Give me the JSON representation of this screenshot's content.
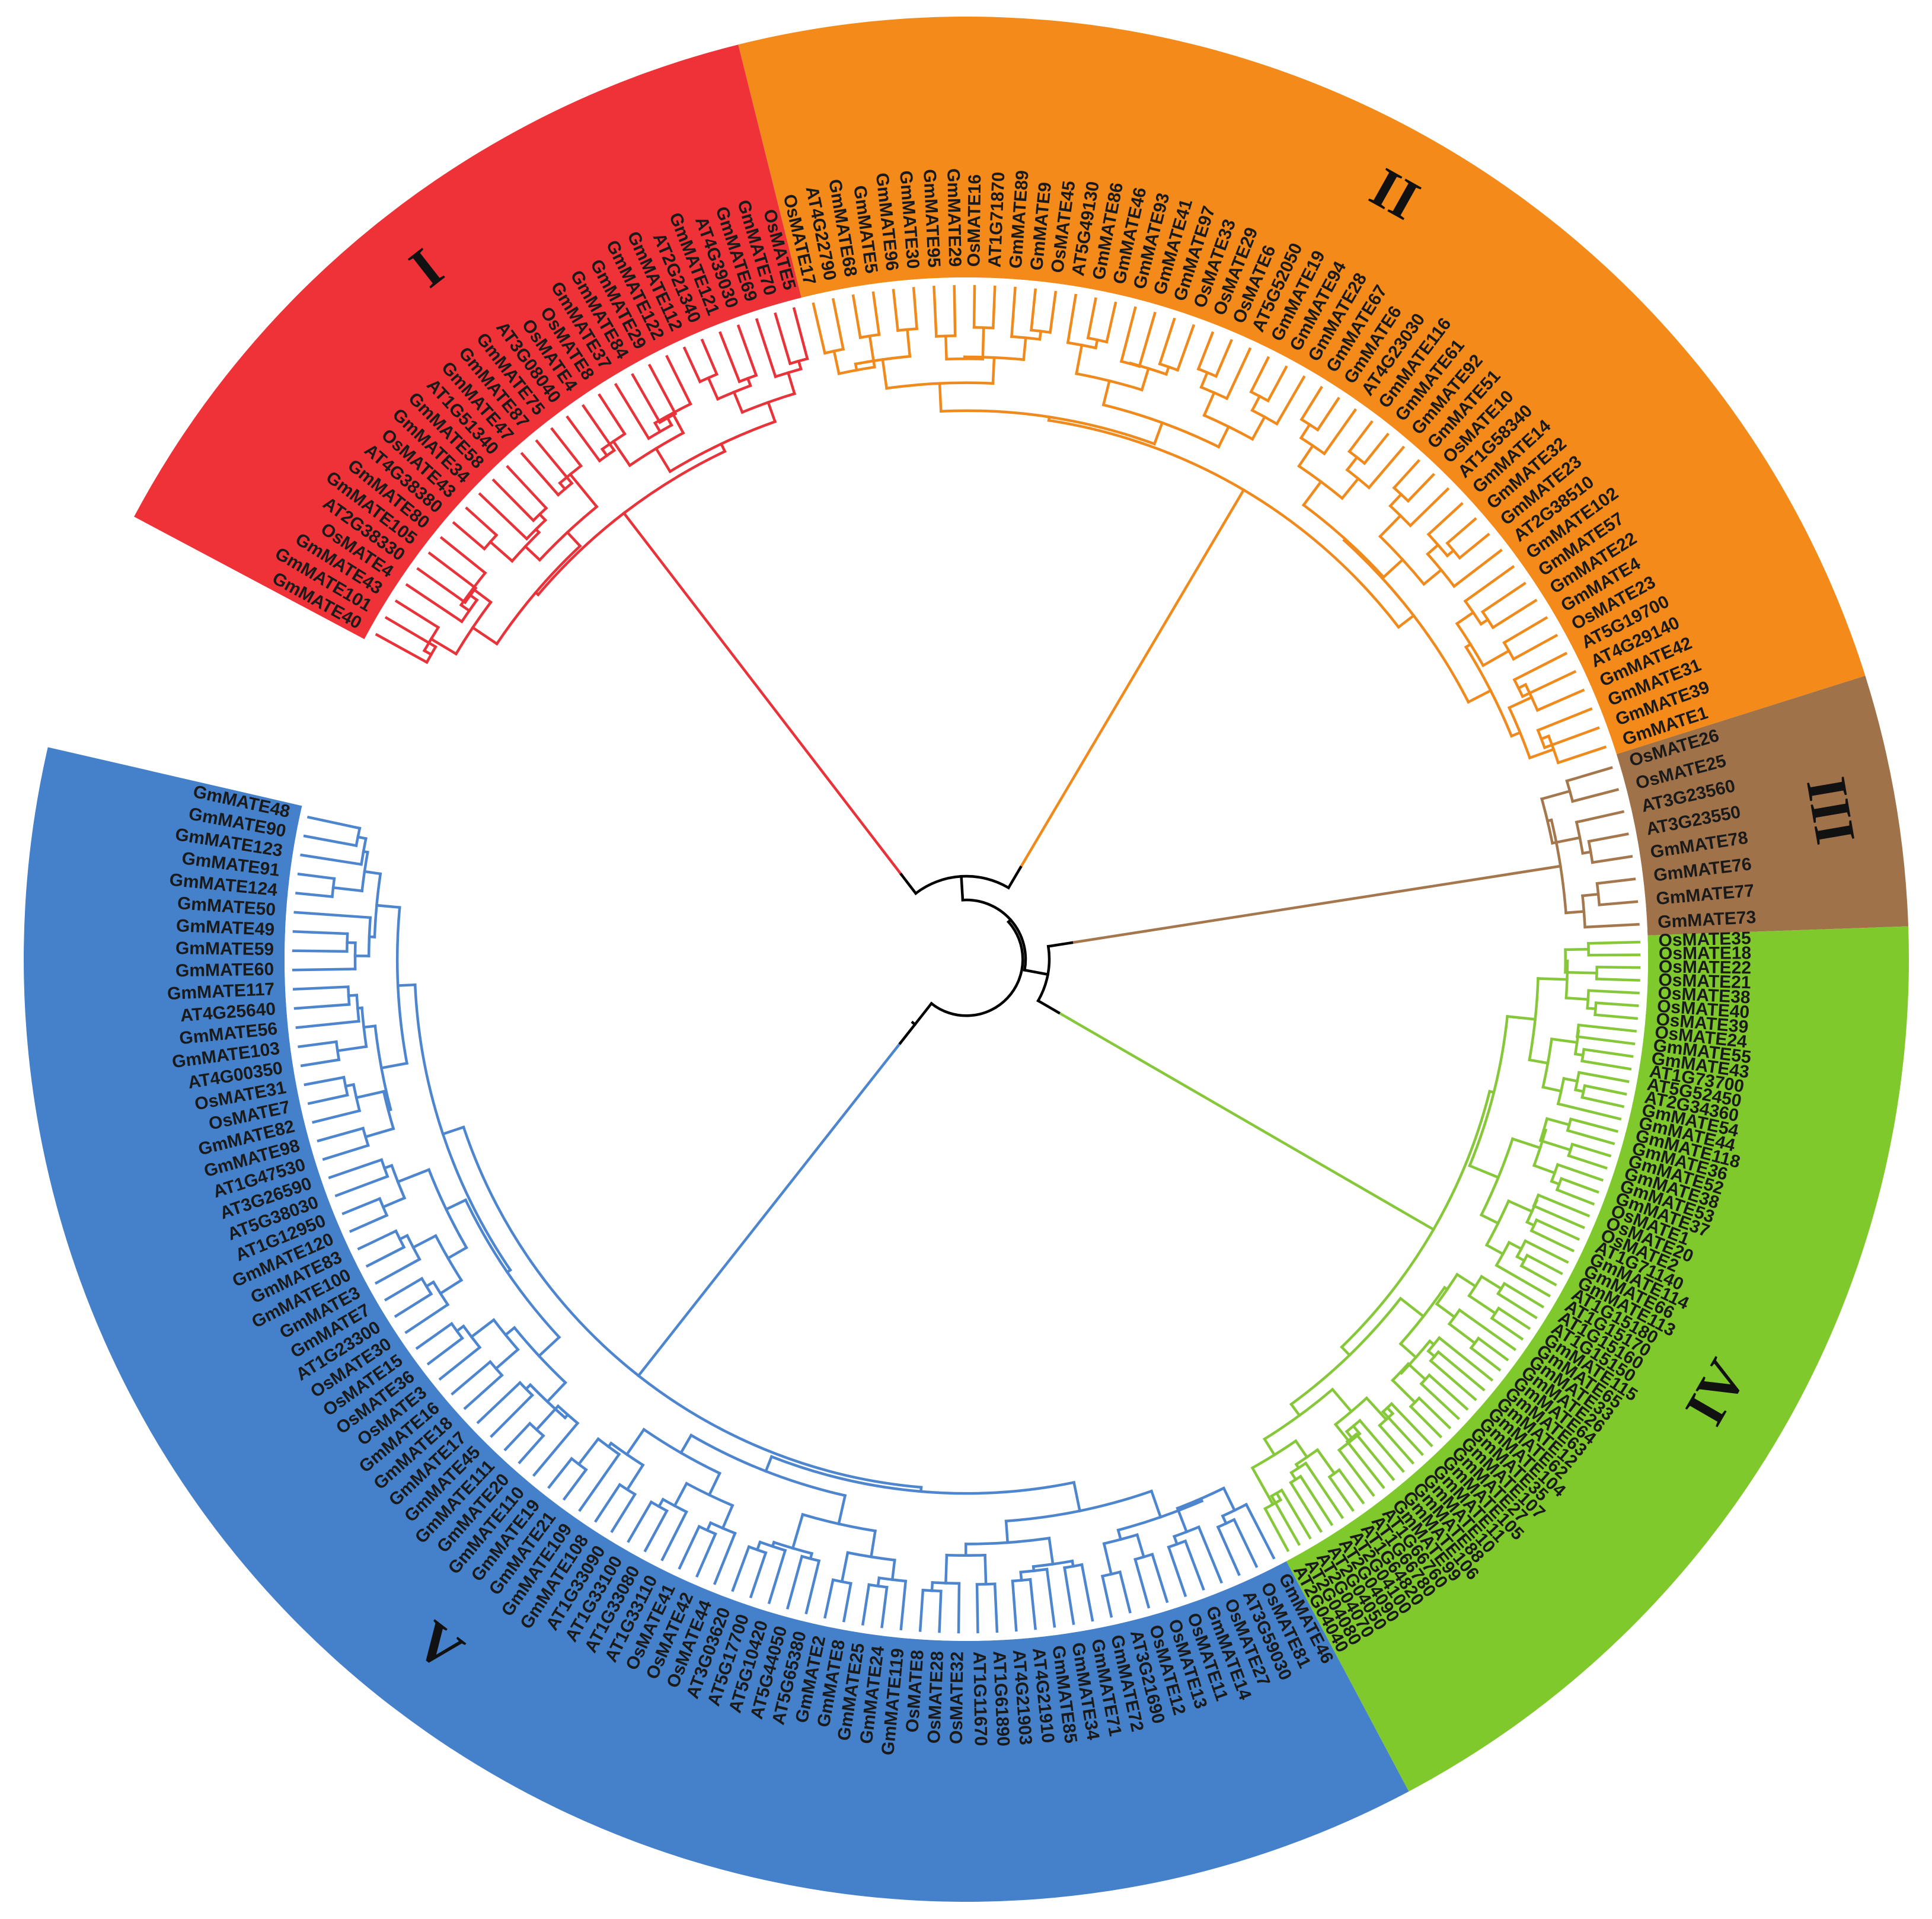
{
  "colors": {
    "backbone": "#000000"
  },
  "clades": [
    {
      "id": "I",
      "label": "I",
      "fill": "#ee3238",
      "line": "#e8333a",
      "leaves": [
        "GmMATE40",
        "GmMATE101",
        "GmMATE43",
        "OsMATE4",
        "AT2G38330",
        "GmMATE105",
        "GmMATE80",
        "AT4G38380",
        "OsMATE43",
        "GmMATE34",
        "GmMATE58",
        "AT1G51340",
        "GmMATE47",
        "GmMATE87",
        "GmMATE75",
        "AT3G08040",
        "OsMATE4",
        "OsMATE8",
        "GmMATE37",
        "GmMATE84",
        "GmMATE29",
        "GmMATE122",
        "GmMATE112",
        "AT2G21340",
        "GmMATE121",
        "AT4G39030",
        "GmMATE69",
        "GmMATE70",
        "OsMATE5"
      ]
    },
    {
      "id": "II",
      "label": "II",
      "fill": "#f48a1a",
      "line": "#f08a1c",
      "leaves": [
        "OsMATE17",
        "AT4G22790",
        "GmMATE68",
        "GmMATE5",
        "GmMATE96",
        "GmMATE30",
        "GmMATE95",
        "GmMATE29",
        "OsMATE16",
        "AT1G71870",
        "GmMATE89",
        "GmMATE9",
        "OsMATE45",
        "AT5G49130",
        "GmMATE86",
        "GmMATE46",
        "GmMATE93",
        "GmMATE41",
        "GmMATE97",
        "OsMATE33",
        "OsMATE29",
        "OsMATE6",
        "AT5G52050",
        "GmMATE19",
        "GmMATE94",
        "GmMATE28",
        "GmMATE67",
        "GmMATE6",
        "AT4G23030",
        "GmMATE116",
        "GmMATE61",
        "GmMATE92",
        "GmMATE51",
        "OsMATE10",
        "AT1G58340",
        "GmMATE14",
        "GmMATE32",
        "GmMATE23",
        "AT2G38510",
        "GmMATE102",
        "GmMATE57",
        "GmMATE22",
        "GmMATE4",
        "OsMATE23",
        "AT5G19700",
        "AT4G29140",
        "GmMATE42",
        "GmMATE31",
        "GmMATE39",
        "GmMATE1"
      ]
    },
    {
      "id": "III",
      "label": "III",
      "fill": "#a0724a",
      "line": "#a5774d",
      "leaves": [
        "OsMATE26",
        "OsMATE25",
        "AT3G23560",
        "AT3G23550",
        "GmMATE78",
        "GmMATE76",
        "GmMATE77",
        "GmMATE73"
      ]
    },
    {
      "id": "IV",
      "label": "IV",
      "fill": "#80c92d",
      "line": "#86c83a",
      "leaves": [
        "OsMATE35",
        "OsMATE18",
        "OsMATE22",
        "OsMATE21",
        "OsMATE38",
        "OsMATE40",
        "OsMATE39",
        "OsMATE24",
        "GmMATE55",
        "GmMATE43",
        "AT1G73700",
        "AT5G52450",
        "AT2G34360",
        "GmMATE54",
        "GmMATE44",
        "GmMATE118",
        "GmMATE36",
        "GmMATE52",
        "GmMATE38",
        "GmMATE53",
        "GmMATE37",
        "OsMATE1",
        "OsMATE20",
        "OsMATE2",
        "AT1G71140",
        "GmMATE114",
        "GmMATE66",
        "GmMATE113",
        "AT1G15180",
        "AT1G15170",
        "AT1G15160",
        "AT1G15150",
        "GmMATE115",
        "GmMATE65",
        "GmMATE33",
        "GmMATE26",
        "GmMATE64",
        "GmMATE63",
        "GmMATE12",
        "GmMATE62",
        "GmMATE104",
        "GmMATE35",
        "GmMATE107",
        "GmMATE27",
        "GmMATE105",
        "GmMATE11",
        "GmMATE10",
        "GmMATE88",
        "GmMATE106",
        "GmMATE99",
        "AT1G66760",
        "AT1G66780",
        "AT1G64820",
        "AT2G04100",
        "AT2G04090",
        "AT2G04050",
        "AT2G04070",
        "AT2G04080",
        "AT2G04040"
      ]
    },
    {
      "id": "V",
      "label": "V",
      "fill": "#4581cb",
      "line": "#4d86cf",
      "leaves": [
        "GmMATE46",
        "OsMATE81",
        "AT3G59030",
        "OsMATE27",
        "GmMATE14",
        "OsMATE11",
        "OsMATE13",
        "OsMATE12",
        "AT3G21690",
        "GmMATE72",
        "GmMATE71",
        "GmMATE34",
        "GmMATE85",
        "AT4G21910",
        "AT4G21903",
        "AT1G61890",
        "AT1G11670",
        "OsMATE32",
        "OsMATE28",
        "OsMATE8",
        "GmMATE119",
        "GmMATE24",
        "GmMATE25",
        "GmMATE8",
        "GmMATE2",
        "AT5G65380",
        "AT5G44050",
        "AT5G10420",
        "AT5G17700",
        "AT3G03620",
        "OsMATE44",
        "OsMATE42",
        "OsMATE41",
        "AT1G33110",
        "AT1G33080",
        "AT1G33100",
        "AT1G33090",
        "GmMATE108",
        "GmMATE109",
        "GmMATE21",
        "GmMATE19",
        "GmMATE110",
        "GmMATE20",
        "GmMATE111",
        "GmMATE45",
        "GmMATE17",
        "GmMATE18",
        "GmMATE16",
        "OsMATE3",
        "OsMATE36",
        "OsMATE15",
        "OsMATE30",
        "AT1G23300",
        "GmMATE7",
        "GmMATE3",
        "GmMATE100",
        "GmMATE83",
        "GmMATE120",
        "AT1G12950",
        "AT5G38030",
        "AT3G26590",
        "AT1G47530",
        "GmMATE98",
        "GmMATE82",
        "OsMATE7",
        "OsMATE31",
        "AT4G00350",
        "GmMATE103",
        "GmMATE56",
        "AT4G25640",
        "GmMATE117",
        "GmMATE60",
        "GmMATE59",
        "GmMATE49",
        "GmMATE50",
        "GmMATE124",
        "GmMATE91",
        "GmMATE123",
        "GmMATE90",
        "GmMATE48"
      ]
    }
  ]
}
